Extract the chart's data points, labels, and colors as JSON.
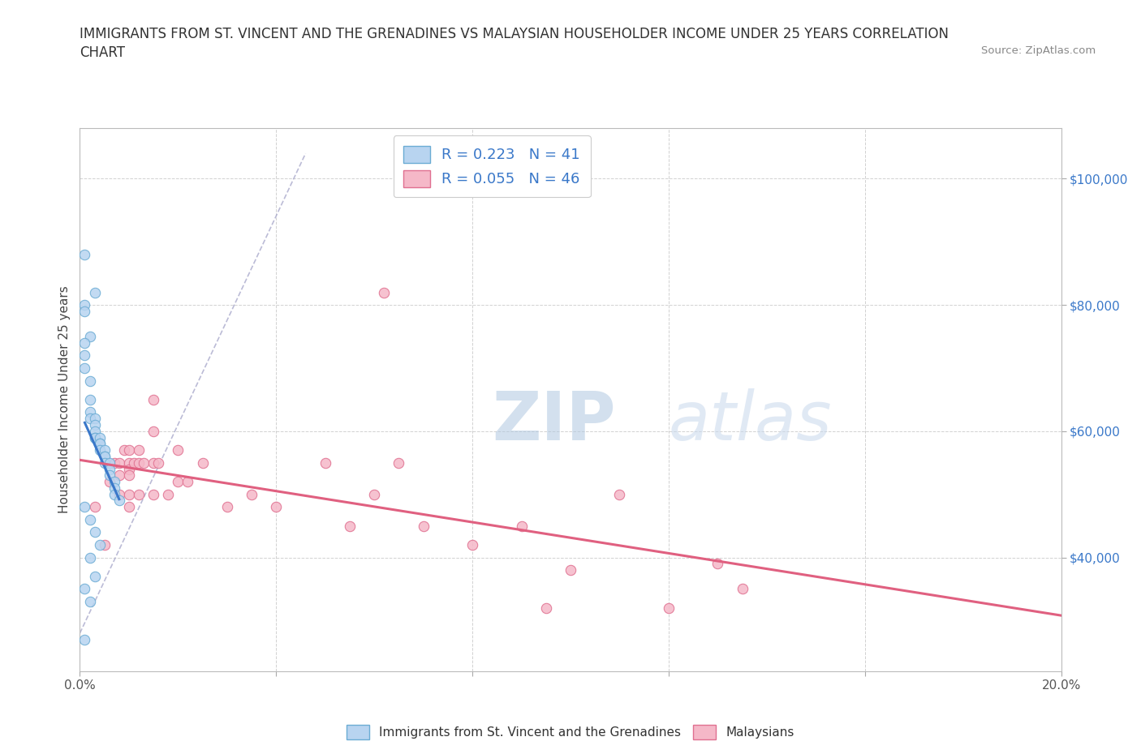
{
  "title_line1": "IMMIGRANTS FROM ST. VINCENT AND THE GRENADINES VS MALAYSIAN HOUSEHOLDER INCOME UNDER 25 YEARS CORRELATION",
  "title_line2": "CHART",
  "source_text": "Source: ZipAtlas.com",
  "ylabel": "Householder Income Under 25 years",
  "xmin": 0.0,
  "xmax": 0.2,
  "ymin": 22000,
  "ymax": 108000,
  "x_ticks": [
    0.0,
    0.04,
    0.08,
    0.12,
    0.16,
    0.2
  ],
  "y_ticks": [
    40000,
    60000,
    80000,
    100000
  ],
  "y_tick_labels": [
    "$40,000",
    "$60,000",
    "$80,000",
    "$100,000"
  ],
  "blue_fill": "#b8d4f0",
  "blue_edge": "#6bacd4",
  "pink_fill": "#f5b8c8",
  "pink_edge": "#e07090",
  "blue_line_color": "#3a78c9",
  "pink_line_color": "#e06080",
  "dash_line_color": "#aaaacc",
  "legend_text_color": "#3a78c9",
  "watermark_color": "#c8d8e8",
  "R_blue": 0.223,
  "N_blue": 41,
  "R_pink": 0.055,
  "N_pink": 46,
  "blue_scatter_x": [
    0.001,
    0.003,
    0.001,
    0.001,
    0.002,
    0.001,
    0.001,
    0.001,
    0.002,
    0.002,
    0.002,
    0.002,
    0.003,
    0.003,
    0.003,
    0.003,
    0.003,
    0.004,
    0.004,
    0.004,
    0.004,
    0.005,
    0.005,
    0.005,
    0.005,
    0.006,
    0.006,
    0.006,
    0.007,
    0.007,
    0.007,
    0.008,
    0.001,
    0.002,
    0.003,
    0.004,
    0.002,
    0.003,
    0.001,
    0.002,
    0.001
  ],
  "blue_scatter_y": [
    88000,
    82000,
    80000,
    79000,
    75000,
    74000,
    72000,
    70000,
    68000,
    65000,
    63000,
    62000,
    62000,
    61000,
    60000,
    59000,
    59000,
    59000,
    58000,
    58000,
    57000,
    57000,
    56000,
    56000,
    55000,
    55000,
    54000,
    53000,
    52000,
    51000,
    50000,
    49000,
    48000,
    46000,
    44000,
    42000,
    40000,
    37000,
    35000,
    33000,
    27000
  ],
  "pink_scatter_x": [
    0.003,
    0.005,
    0.006,
    0.007,
    0.008,
    0.008,
    0.008,
    0.009,
    0.01,
    0.01,
    0.01,
    0.01,
    0.01,
    0.01,
    0.011,
    0.012,
    0.012,
    0.012,
    0.013,
    0.015,
    0.015,
    0.015,
    0.015,
    0.016,
    0.018,
    0.02,
    0.02,
    0.022,
    0.025,
    0.03,
    0.035,
    0.04,
    0.05,
    0.055,
    0.06,
    0.062,
    0.065,
    0.07,
    0.08,
    0.09,
    0.095,
    0.1,
    0.11,
    0.12,
    0.13,
    0.135
  ],
  "pink_scatter_y": [
    48000,
    42000,
    52000,
    55000,
    55000,
    53000,
    50000,
    57000,
    57000,
    55000,
    54000,
    53000,
    50000,
    48000,
    55000,
    57000,
    55000,
    50000,
    55000,
    65000,
    60000,
    55000,
    50000,
    55000,
    50000,
    57000,
    52000,
    52000,
    55000,
    48000,
    50000,
    48000,
    55000,
    45000,
    50000,
    82000,
    55000,
    45000,
    42000,
    45000,
    32000,
    38000,
    50000,
    32000,
    39000,
    35000
  ],
  "title_fontsize": 12,
  "axis_label_fontsize": 11,
  "tick_fontsize": 11,
  "legend_fontsize": 13,
  "watermark_fontsize": 60
}
